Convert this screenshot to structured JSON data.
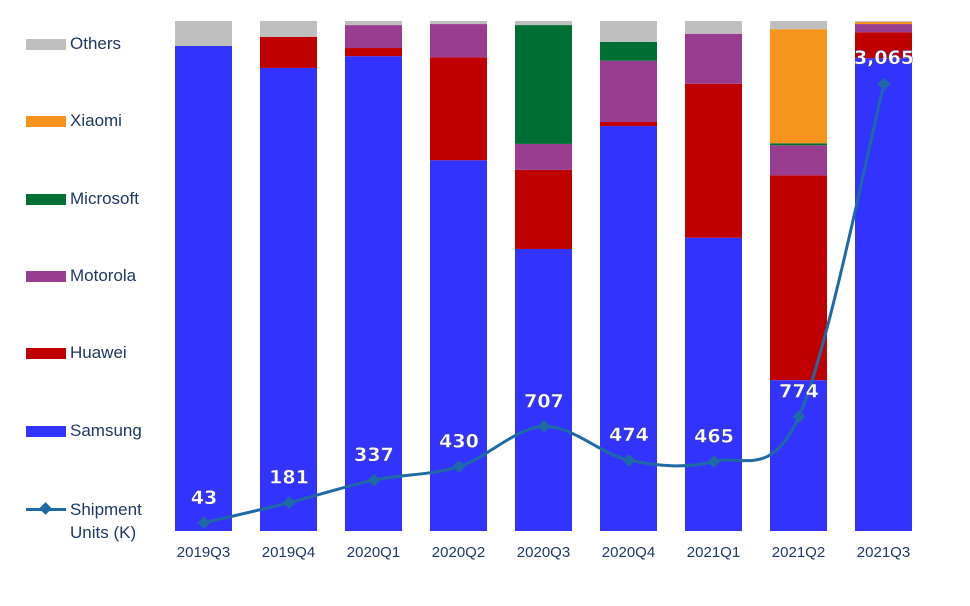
{
  "chart_data": {
    "type": "bar",
    "stacked": true,
    "normalized_percent": true,
    "categories": [
      "2019Q3",
      "2019Q4",
      "2020Q1",
      "2020Q2",
      "2020Q3",
      "2020Q4",
      "2021Q1",
      "2021Q2",
      "2021Q3"
    ],
    "series": [
      {
        "name": "Samsung",
        "color": "#3333ff",
        "values": [
          95.1,
          90.8,
          93.1,
          72.7,
          55.3,
          79.4,
          57.5,
          29.6,
          92.7
        ]
      },
      {
        "name": "Huawei",
        "color": "#c00000",
        "values": [
          0,
          6.1,
          1.6,
          20.2,
          15.5,
          0.8,
          30.2,
          40.2,
          5.1
        ]
      },
      {
        "name": "Motorola",
        "color": "#993d91",
        "values": [
          0,
          0,
          4.5,
          6.5,
          5.1,
          12.0,
          9.8,
          5.9,
          1.6
        ]
      },
      {
        "name": "Microsoft",
        "color": "#006f34",
        "values": [
          0,
          0,
          0,
          0,
          23.3,
          3.7,
          0,
          0.4,
          0
        ]
      },
      {
        "name": "Xiaomi",
        "color": "#f7941d",
        "values": [
          0,
          0,
          0,
          0,
          0,
          0,
          0,
          22.4,
          0.4
        ]
      },
      {
        "name": "Others",
        "color": "#bfbfbf",
        "values": [
          4.9,
          3.1,
          0.8,
          0.6,
          0.8,
          4.1,
          2.5,
          1.6,
          0.2
        ]
      }
    ],
    "line": {
      "name": "Shipment Units (K)",
      "color": "#1f6aa5",
      "values": [
        43,
        181,
        337,
        430,
        707,
        474,
        465,
        774,
        3065
      ],
      "labels": [
        "43",
        "181",
        "337",
        "430",
        "707",
        "474",
        "465",
        "774",
        "3,065"
      ],
      "ylim": [
        0,
        3500
      ]
    },
    "ylim": [
      0,
      100
    ],
    "grid": false,
    "legend_position": "left",
    "legend_order": [
      "Others",
      "Xiaomi",
      "Microsoft",
      "Motorola",
      "Huawei",
      "Samsung",
      "Shipment Units (K)"
    ]
  },
  "legend": {
    "others": "Others",
    "xiaomi": "Xiaomi",
    "microsoft": "Microsoft",
    "motorola": "Motorola",
    "huawei": "Huawei",
    "samsung": "Samsung",
    "shipment_line1": "Shipment",
    "shipment_line2": "Units (K)"
  }
}
